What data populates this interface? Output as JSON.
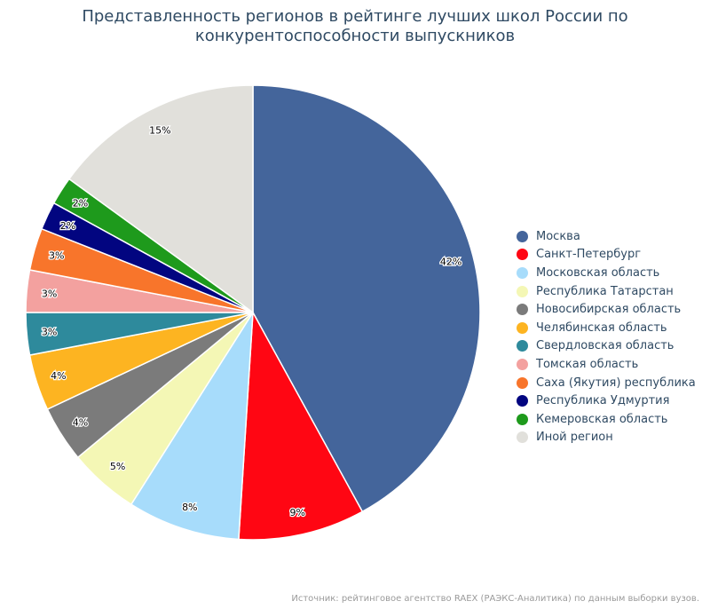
{
  "chart_data": {
    "type": "pie",
    "title_lines": [
      "Представленность регионов в рейтинге лучших школ России по",
      "конкурентоспособности выпускников"
    ],
    "slices": [
      {
        "label": "Москва",
        "value": 42,
        "display": "42%",
        "color": "#44659b"
      },
      {
        "label": "Санкт-Петербург",
        "value": 9,
        "display": "9%",
        "color": "#ff0613"
      },
      {
        "label": "Московская область",
        "value": 8,
        "display": "8%",
        "color": "#a7dcfb"
      },
      {
        "label": "Республика Татарстан",
        "value": 5,
        "display": "5%",
        "color": "#f4f7b5"
      },
      {
        "label": "Новосибирская область",
        "value": 4,
        "display": "4%",
        "color": "#7b7b7b"
      },
      {
        "label": "Челябинская область",
        "value": 4,
        "display": "4%",
        "color": "#fdb421"
      },
      {
        "label": "Свердловская область",
        "value": 3,
        "display": "3%",
        "color": "#2e8a9c"
      },
      {
        "label": "Томская область",
        "value": 3,
        "display": "3%",
        "color": "#f3a19f"
      },
      {
        "label": "Саха (Якутия) республика",
        "value": 3,
        "display": "3%",
        "color": "#f8752b"
      },
      {
        "label": "Республика Удмуртия",
        "value": 2,
        "display": "2%",
        "color": "#020580"
      },
      {
        "label": "Кемеровская область",
        "value": 2,
        "display": "2%",
        "color": "#1e9a1c"
      },
      {
        "label": "Иной регион",
        "value": 15,
        "display": "15%",
        "color": "#e1e0db"
      }
    ],
    "legend_position": "right"
  },
  "source": "Источник: рейтинговое агентство RAEX (РАЭКС-Аналитика) по данным выборки вузов."
}
